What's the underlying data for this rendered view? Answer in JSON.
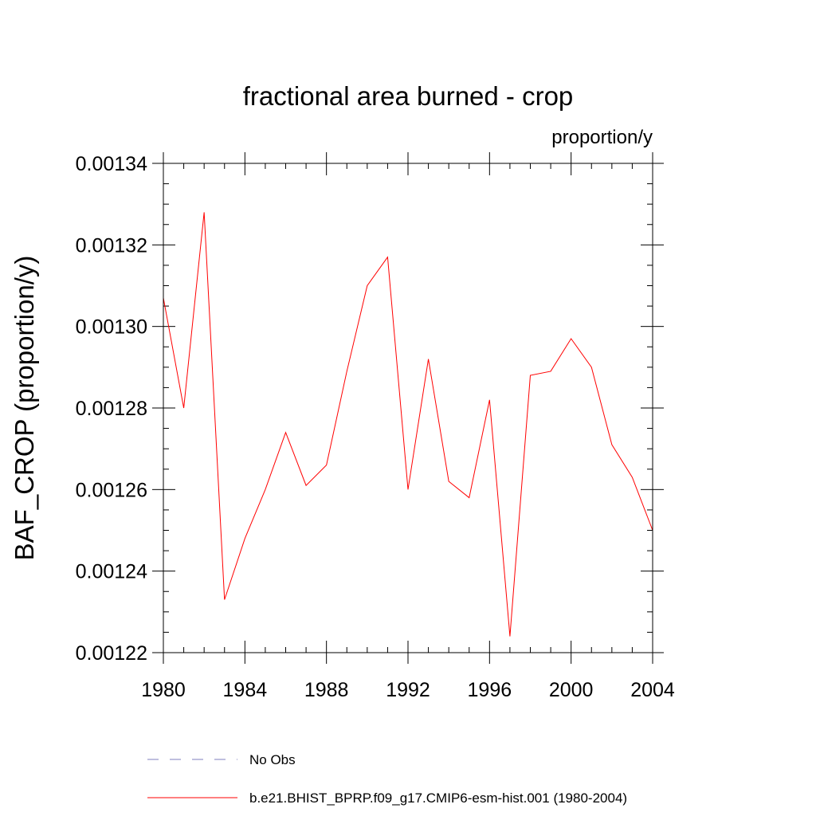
{
  "chart_data": {
    "type": "line",
    "title": "fractional area burned - crop",
    "units_label": "proportion/y",
    "xlabel": "",
    "ylabel": "BAF_CROP  (proportion/y)",
    "xlim": [
      1980,
      2004
    ],
    "ylim": [
      0.00122,
      0.00134
    ],
    "x_ticks": [
      "1980",
      "1984",
      "1988",
      "1992",
      "1996",
      "2000",
      "2004"
    ],
    "y_ticks": [
      "0.00122",
      "0.00124",
      "0.00126",
      "0.00128",
      "0.00130",
      "0.00132",
      "0.00134"
    ],
    "x": [
      1980,
      1981,
      1982,
      1983,
      1984,
      1985,
      1986,
      1987,
      1988,
      1989,
      1990,
      1991,
      1992,
      1993,
      1994,
      1995,
      1996,
      1997,
      1998,
      1999,
      2000,
      2001,
      2002,
      2003,
      2004
    ],
    "series": [
      {
        "name": "b.e21.BHIST_BPRP.f09_g17.CMIP6-esm-hist.001 (1980-2004)",
        "color": "#ff0000",
        "dash": "solid",
        "values": [
          0.001307,
          0.00128,
          0.001328,
          0.001233,
          0.001248,
          0.00126,
          0.001274,
          0.001261,
          0.001266,
          0.001289,
          0.00131,
          0.001317,
          0.00126,
          0.001292,
          0.001262,
          0.001258,
          0.001282,
          0.001224,
          0.001288,
          0.001289,
          0.001297,
          0.00129,
          0.001271,
          0.001263,
          0.00125
        ]
      }
    ],
    "legend": {
      "placement": "bottom",
      "entries": [
        {
          "label": "No Obs",
          "color": "#7f7fbf",
          "dash": "dashed"
        },
        {
          "label": "b.e21.BHIST_BPRP.f09_g17.CMIP6-esm-hist.001 (1980-2004)",
          "color": "#ff0000",
          "dash": "solid"
        }
      ]
    },
    "grid": false
  }
}
